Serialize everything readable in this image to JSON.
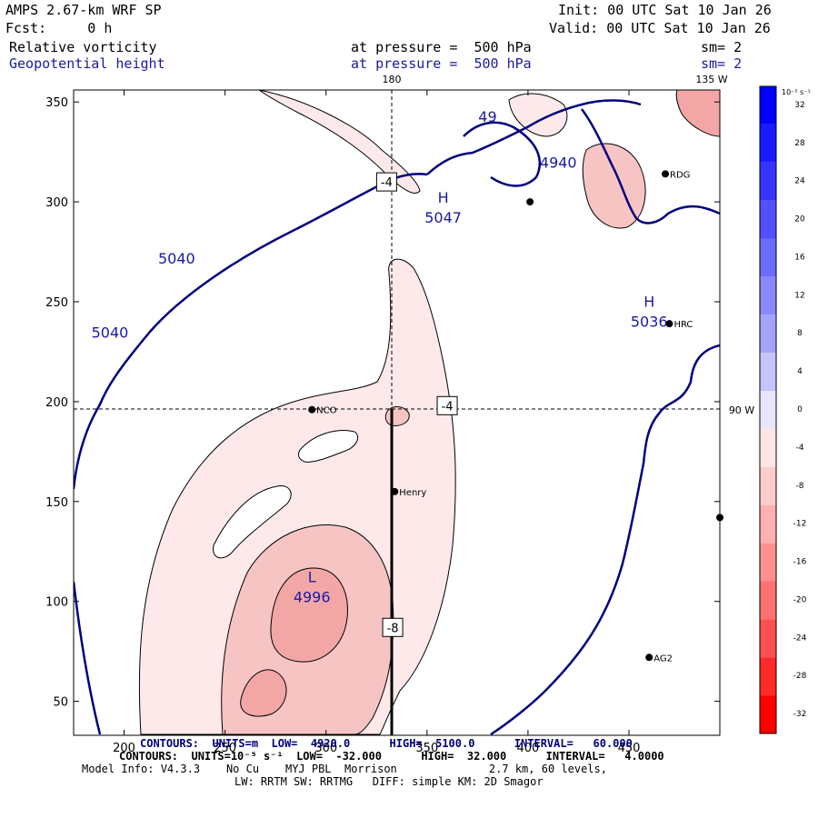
{
  "header": {
    "model": "AMPS 2.67-km WRF SP",
    "init": "Init: 00 UTC Sat 10 Jan 26",
    "fcst": "Fcst:     0 h",
    "valid": "Valid: 00 UTC Sat 10 Jan 26",
    "field1": "Relative vorticity",
    "field1_level": "at pressure =  500 hPa",
    "field1_sm": "sm= 2",
    "field2": "Geopotential height",
    "field2_level": "at pressure =  500 hPa",
    "field2_sm": "sm= 2"
  },
  "map": {
    "x_ticks": [
      "200",
      "250",
      "300",
      "350",
      "400",
      "450"
    ],
    "y_ticks": [
      "350",
      "300",
      "250",
      "200",
      "150",
      "100",
      "50"
    ],
    "meridian_top": "180",
    "meridian_top_right": "135 W",
    "parallel_right": "90 W",
    "xlim": [
      175,
      495
    ],
    "ylim": [
      33,
      356
    ],
    "stations": [
      {
        "name": "RDG",
        "x": 468,
        "y": 314
      },
      {
        "name": "HRC",
        "x": 470,
        "y": 239
      },
      {
        "name": "NCO",
        "x": 293,
        "y": 196
      },
      {
        "name": "Henry",
        "x": 334,
        "y": 155
      },
      {
        "name": "AG2",
        "x": 460,
        "y": 72
      },
      {
        "name": "",
        "x": 401,
        "y": 300
      },
      {
        "name": "",
        "x": 495,
        "y": 142
      }
    ],
    "height_labels": [
      {
        "text": "5040",
        "x": 226,
        "y": 269
      },
      {
        "text": "5040",
        "x": 193,
        "y": 232
      },
      {
        "text": "4940",
        "x": 415,
        "y": 317
      },
      {
        "text": "49",
        "x": 380,
        "y": 340
      }
    ],
    "highs_lows": [
      {
        "type": "H",
        "value": "5047",
        "x": 358,
        "y": 295
      },
      {
        "type": "H",
        "value": "5036",
        "x": 460,
        "y": 243
      },
      {
        "type": "L",
        "value": "4996",
        "x": 293,
        "y": 105
      }
    ],
    "boxed_labels": [
      {
        "text": "-4",
        "x": 330,
        "y": 310
      },
      {
        "text": "-4",
        "x": 360,
        "y": 198
      },
      {
        "text": "-8",
        "x": 333,
        "y": 87
      }
    ]
  },
  "colorbar": {
    "unit": "10⁻⁵ s⁻¹",
    "labels": [
      "32",
      "28",
      "24",
      "20",
      "16",
      "12",
      "8",
      "4",
      "0",
      "-4",
      "-8",
      "-12",
      "-16",
      "-20",
      "-24",
      "-28",
      "-32"
    ],
    "colors": [
      "#0000ff",
      "#1a1aff",
      "#3535ff",
      "#5050ff",
      "#6c6cff",
      "#8888ff",
      "#a4a4ff",
      "#c4c4ff",
      "#e6e6ff",
      "#ffe6e6",
      "#ffcccc",
      "#ffb0b0",
      "#ff9090",
      "#ff7070",
      "#ff5050",
      "#ff2a2a",
      "#ff0000"
    ]
  },
  "footer": {
    "line1": "CONTOURS:  UNITS=m  LOW=  4920.0      HIGH=  5100.0      INTERVAL=   60.000",
    "line2": "CONTOURS:  UNITS=10⁻⁵ s⁻¹  LOW=  -32.000      HIGH=  32.000      INTERVAL=   4.0000",
    "line3": "Model Info: V4.3.3    No Cu    MYJ PBL  Morrison              2.7 km, 60 levels,",
    "line4": "LW: RRTM SW: RRTMG   DIFF: simple KM: 2D Smagor"
  }
}
